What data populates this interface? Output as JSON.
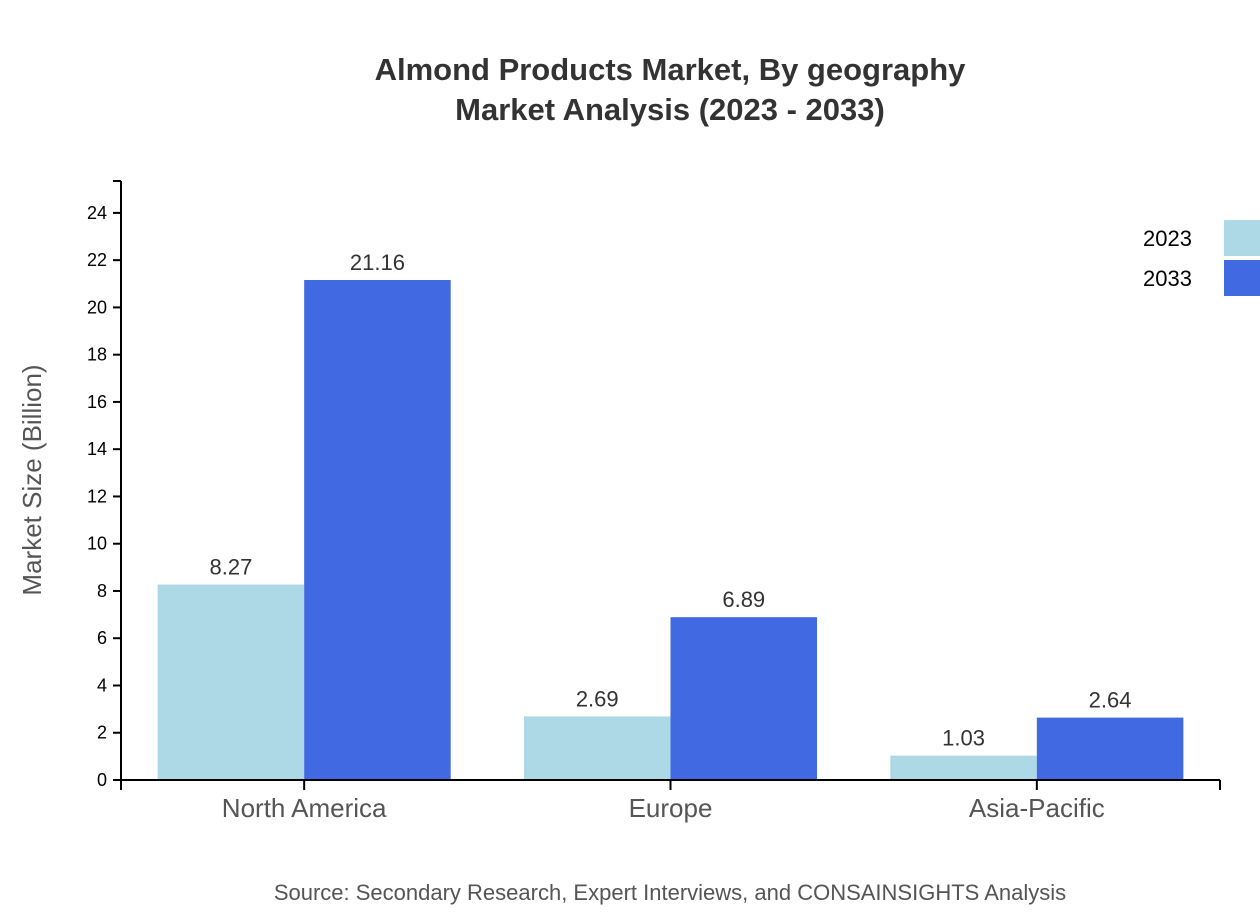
{
  "chart_data": {
    "type": "bar",
    "title": [
      "Almond Products Market, By geography",
      "Market Analysis (2023 - 2033)"
    ],
    "xlabel": "",
    "ylabel": "Market Size (Billion)",
    "ylim": [
      0,
      25.35
    ],
    "yticks": [
      0,
      2,
      4,
      6,
      8,
      10,
      12,
      14,
      16,
      18,
      20,
      22,
      24
    ],
    "categories": [
      "North America",
      "Europe",
      "Asia-Pacific"
    ],
    "series": [
      {
        "name": "2023",
        "color": "#add8e6",
        "values": [
          8.27,
          2.69,
          1.03
        ]
      },
      {
        "name": "2033",
        "color": "#4169e1",
        "values": [
          21.16,
          6.89,
          2.64
        ]
      }
    ],
    "legend": "top-right",
    "grid": false,
    "source": "Source: Secondary Research, Expert Interviews, and CONSAINSIGHTS Analysis"
  }
}
